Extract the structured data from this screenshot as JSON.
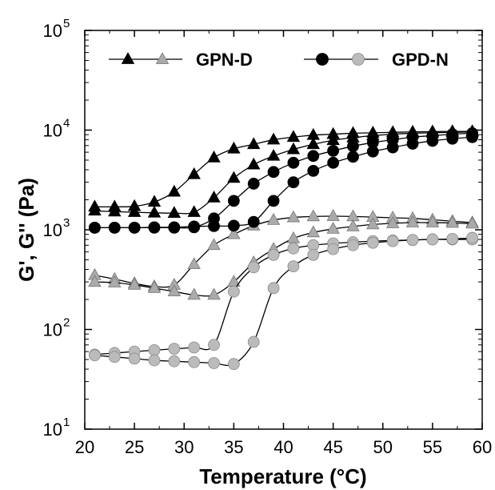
{
  "chart_data": {
    "type": "line",
    "title": "",
    "xlabel": "Temperature (°C)",
    "ylabel": "G', G'' (Pa)",
    "xlim": [
      20,
      60
    ],
    "ylim": [
      10,
      100000
    ],
    "yscale": "log",
    "grid": false,
    "legend_position": "top",
    "x_ticks": [
      20,
      25,
      30,
      35,
      40,
      45,
      50,
      55,
      60
    ],
    "y_ticks": [
      {
        "value": 10,
        "base": "10",
        "exp": "1"
      },
      {
        "value": 100,
        "base": "10",
        "exp": "2"
      },
      {
        "value": 1000,
        "base": "10",
        "exp": "3"
      },
      {
        "value": 10000,
        "base": "10",
        "exp": "4"
      },
      {
        "value": 100000,
        "base": "10",
        "exp": "5"
      }
    ],
    "legend": [
      {
        "label": "GPN-D",
        "markers": [
          "triangle-black",
          "triangle-gray"
        ]
      },
      {
        "label": "GPD-N",
        "markers": [
          "circle-black",
          "circle-gray"
        ]
      }
    ],
    "series": [
      {
        "group": "GPN-D",
        "marker": "triangle",
        "color": "#000000",
        "x": [
          21,
          23,
          25,
          27,
          29,
          31,
          33,
          35,
          37,
          39,
          41,
          43,
          45,
          47,
          49,
          51,
          53,
          55,
          57,
          59
        ],
        "y": [
          1700,
          1700,
          1720,
          1900,
          2400,
          3600,
          5300,
          6500,
          7200,
          8000,
          8500,
          8900,
          9100,
          9300,
          9400,
          9500,
          9600,
          9650,
          9700,
          9700
        ]
      },
      {
        "group": "GPN-D",
        "marker": "triangle",
        "color": "#000000",
        "x": [
          21,
          23,
          25,
          27,
          29,
          31,
          33,
          35,
          37,
          39,
          41,
          43,
          45,
          47,
          49,
          51,
          53,
          55,
          57,
          59
        ],
        "y": [
          1550,
          1520,
          1500,
          1480,
          1470,
          1500,
          2100,
          3300,
          4500,
          5500,
          6400,
          7200,
          7900,
          8400,
          8800,
          9100,
          9300,
          9400,
          9500,
          9600
        ]
      },
      {
        "group": "GPN-D",
        "marker": "triangle",
        "color": "#aaaaaa",
        "x": [
          21,
          23,
          25,
          27,
          29,
          31,
          33,
          35,
          37,
          39,
          41,
          43,
          45,
          47,
          49,
          51,
          53,
          55,
          57,
          59
        ],
        "y": [
          350,
          320,
          290,
          270,
          280,
          450,
          700,
          900,
          1100,
          1250,
          1330,
          1360,
          1370,
          1360,
          1340,
          1320,
          1300,
          1260,
          1220,
          1180
        ]
      },
      {
        "group": "GPN-D",
        "marker": "triangle",
        "color": "#aaaaaa",
        "x": [
          21,
          23,
          25,
          27,
          29,
          31,
          33,
          35,
          37,
          39,
          41,
          43,
          45,
          47,
          49,
          51,
          53,
          55,
          57,
          59
        ],
        "y": [
          300,
          295,
          280,
          260,
          240,
          222,
          222,
          300,
          470,
          640,
          820,
          940,
          1020,
          1080,
          1130,
          1160,
          1180,
          1180,
          1170,
          1150
        ]
      },
      {
        "group": "GPD-N",
        "marker": "circle",
        "color": "#000000",
        "x": [
          21,
          23,
          25,
          27,
          29,
          31,
          33,
          35,
          37,
          39,
          41,
          43,
          45,
          47,
          49,
          51,
          53,
          55,
          57,
          59
        ],
        "y": [
          1050,
          1050,
          1050,
          1050,
          1050,
          1060,
          1300,
          1950,
          2900,
          3800,
          4700,
          5500,
          6200,
          6900,
          7500,
          8000,
          8500,
          8800,
          9100,
          9300
        ]
      },
      {
        "group": "GPD-N",
        "marker": "circle",
        "color": "#000000",
        "x": [
          21,
          23,
          25,
          27,
          29,
          31,
          33,
          35,
          37,
          39,
          41,
          43,
          45,
          47,
          49,
          51,
          53,
          55,
          57,
          59
        ],
        "y": [
          1050,
          1050,
          1050,
          1060,
          1060,
          1080,
          1090,
          1100,
          1200,
          1950,
          3000,
          3900,
          4700,
          5400,
          6100,
          6700,
          7300,
          7800,
          8200,
          8500
        ]
      },
      {
        "group": "GPD-N",
        "marker": "circle",
        "color": "#bbbbbb",
        "x": [
          21,
          23,
          25,
          27,
          29,
          31,
          33,
          35,
          37,
          39,
          41,
          43,
          45,
          47,
          49,
          51,
          53,
          55,
          57,
          59
        ],
        "y": [
          56,
          58,
          60,
          62,
          64,
          66,
          70,
          240,
          420,
          560,
          650,
          700,
          730,
          750,
          770,
          780,
          790,
          800,
          800,
          800
        ]
      },
      {
        "group": "GPD-N",
        "marker": "circle",
        "color": "#bbbbbb",
        "x": [
          21,
          23,
          25,
          27,
          29,
          31,
          33,
          35,
          37,
          39,
          41,
          43,
          45,
          47,
          49,
          51,
          53,
          55,
          57,
          59
        ],
        "y": [
          55,
          53,
          51,
          49,
          48,
          47,
          46,
          45,
          75,
          260,
          430,
          560,
          640,
          700,
          740,
          770,
          790,
          800,
          810,
          830
        ]
      }
    ]
  }
}
